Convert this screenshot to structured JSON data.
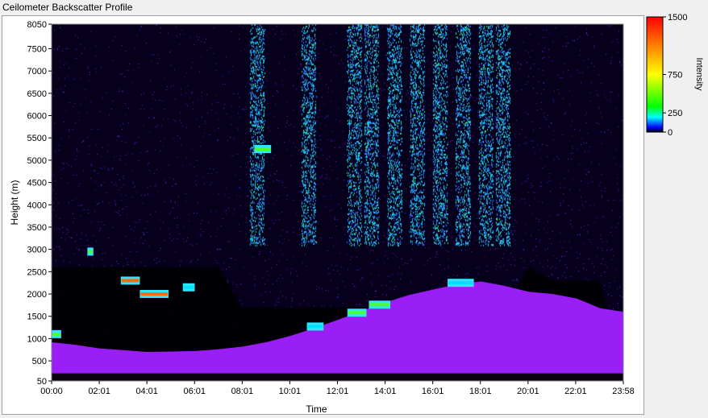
{
  "window": {
    "title": "Ceilometer Backscatter Profile"
  },
  "chart_data": {
    "type": "heatmap",
    "title": "Ceilometer Backscatter Profile",
    "xlabel": "Time",
    "ylabel": "Height (m)",
    "x_ticks": [
      "00:00",
      "02:01",
      "04:01",
      "06:01",
      "08:01",
      "10:01",
      "12:01",
      "14:01",
      "16:01",
      "18:01",
      "20:01",
      "22:01",
      "23:58"
    ],
    "y_ticks": [
      50,
      500,
      1000,
      1500,
      2000,
      2500,
      3000,
      3500,
      4000,
      4500,
      5000,
      5500,
      6000,
      6500,
      7000,
      7500,
      8050
    ],
    "ylim": [
      50,
      8050
    ],
    "xlim_hours": [
      0,
      23.967
    ],
    "colorbar": {
      "label": "Intensity",
      "ticks": [
        0,
        250,
        750,
        1500
      ],
      "range": [
        0,
        1500
      ],
      "colors": [
        "#000000",
        "#0000ff",
        "#00ffff",
        "#00ff00",
        "#ffff00",
        "#ff8000",
        "#ff0000"
      ]
    },
    "boundary_layer_top": {
      "x_hours": [
        0,
        1,
        2,
        3,
        4,
        5,
        6,
        7,
        8,
        9,
        10,
        11,
        12,
        13,
        14,
        15,
        16,
        17,
        18,
        19,
        20,
        21,
        22,
        23,
        23.967
      ],
      "height_m": [
        920,
        860,
        780,
        740,
        700,
        710,
        720,
        760,
        820,
        920,
        1060,
        1230,
        1420,
        1620,
        1810,
        1980,
        2100,
        2220,
        2280,
        2180,
        2050,
        2000,
        1900,
        1680,
        1600
      ]
    },
    "cloud_layers": [
      {
        "x_hours": [
          0.0,
          0.4
        ],
        "height_m": 1100,
        "intensity": 900
      },
      {
        "x_hours": [
          1.5,
          1.75
        ],
        "height_m": 2950,
        "intensity": 800
      },
      {
        "x_hours": [
          2.9,
          3.7
        ],
        "height_m": 2300,
        "intensity": 1400
      },
      {
        "x_hours": [
          3.7,
          4.9
        ],
        "height_m": 2000,
        "intensity": 1300
      },
      {
        "x_hours": [
          5.5,
          6.0
        ],
        "height_m": 2150,
        "intensity": 700
      },
      {
        "x_hours": [
          8.5,
          9.2
        ],
        "height_m": 5250,
        "intensity": 800
      },
      {
        "x_hours": [
          10.7,
          11.4
        ],
        "height_m": 1270,
        "intensity": 600
      },
      {
        "x_hours": [
          12.4,
          13.2
        ],
        "height_m": 1580,
        "intensity": 800
      },
      {
        "x_hours": [
          13.3,
          14.2
        ],
        "height_m": 1760,
        "intensity": 800
      },
      {
        "x_hours": [
          16.6,
          17.7
        ],
        "height_m": 2250,
        "intensity": 700
      }
    ]
  }
}
